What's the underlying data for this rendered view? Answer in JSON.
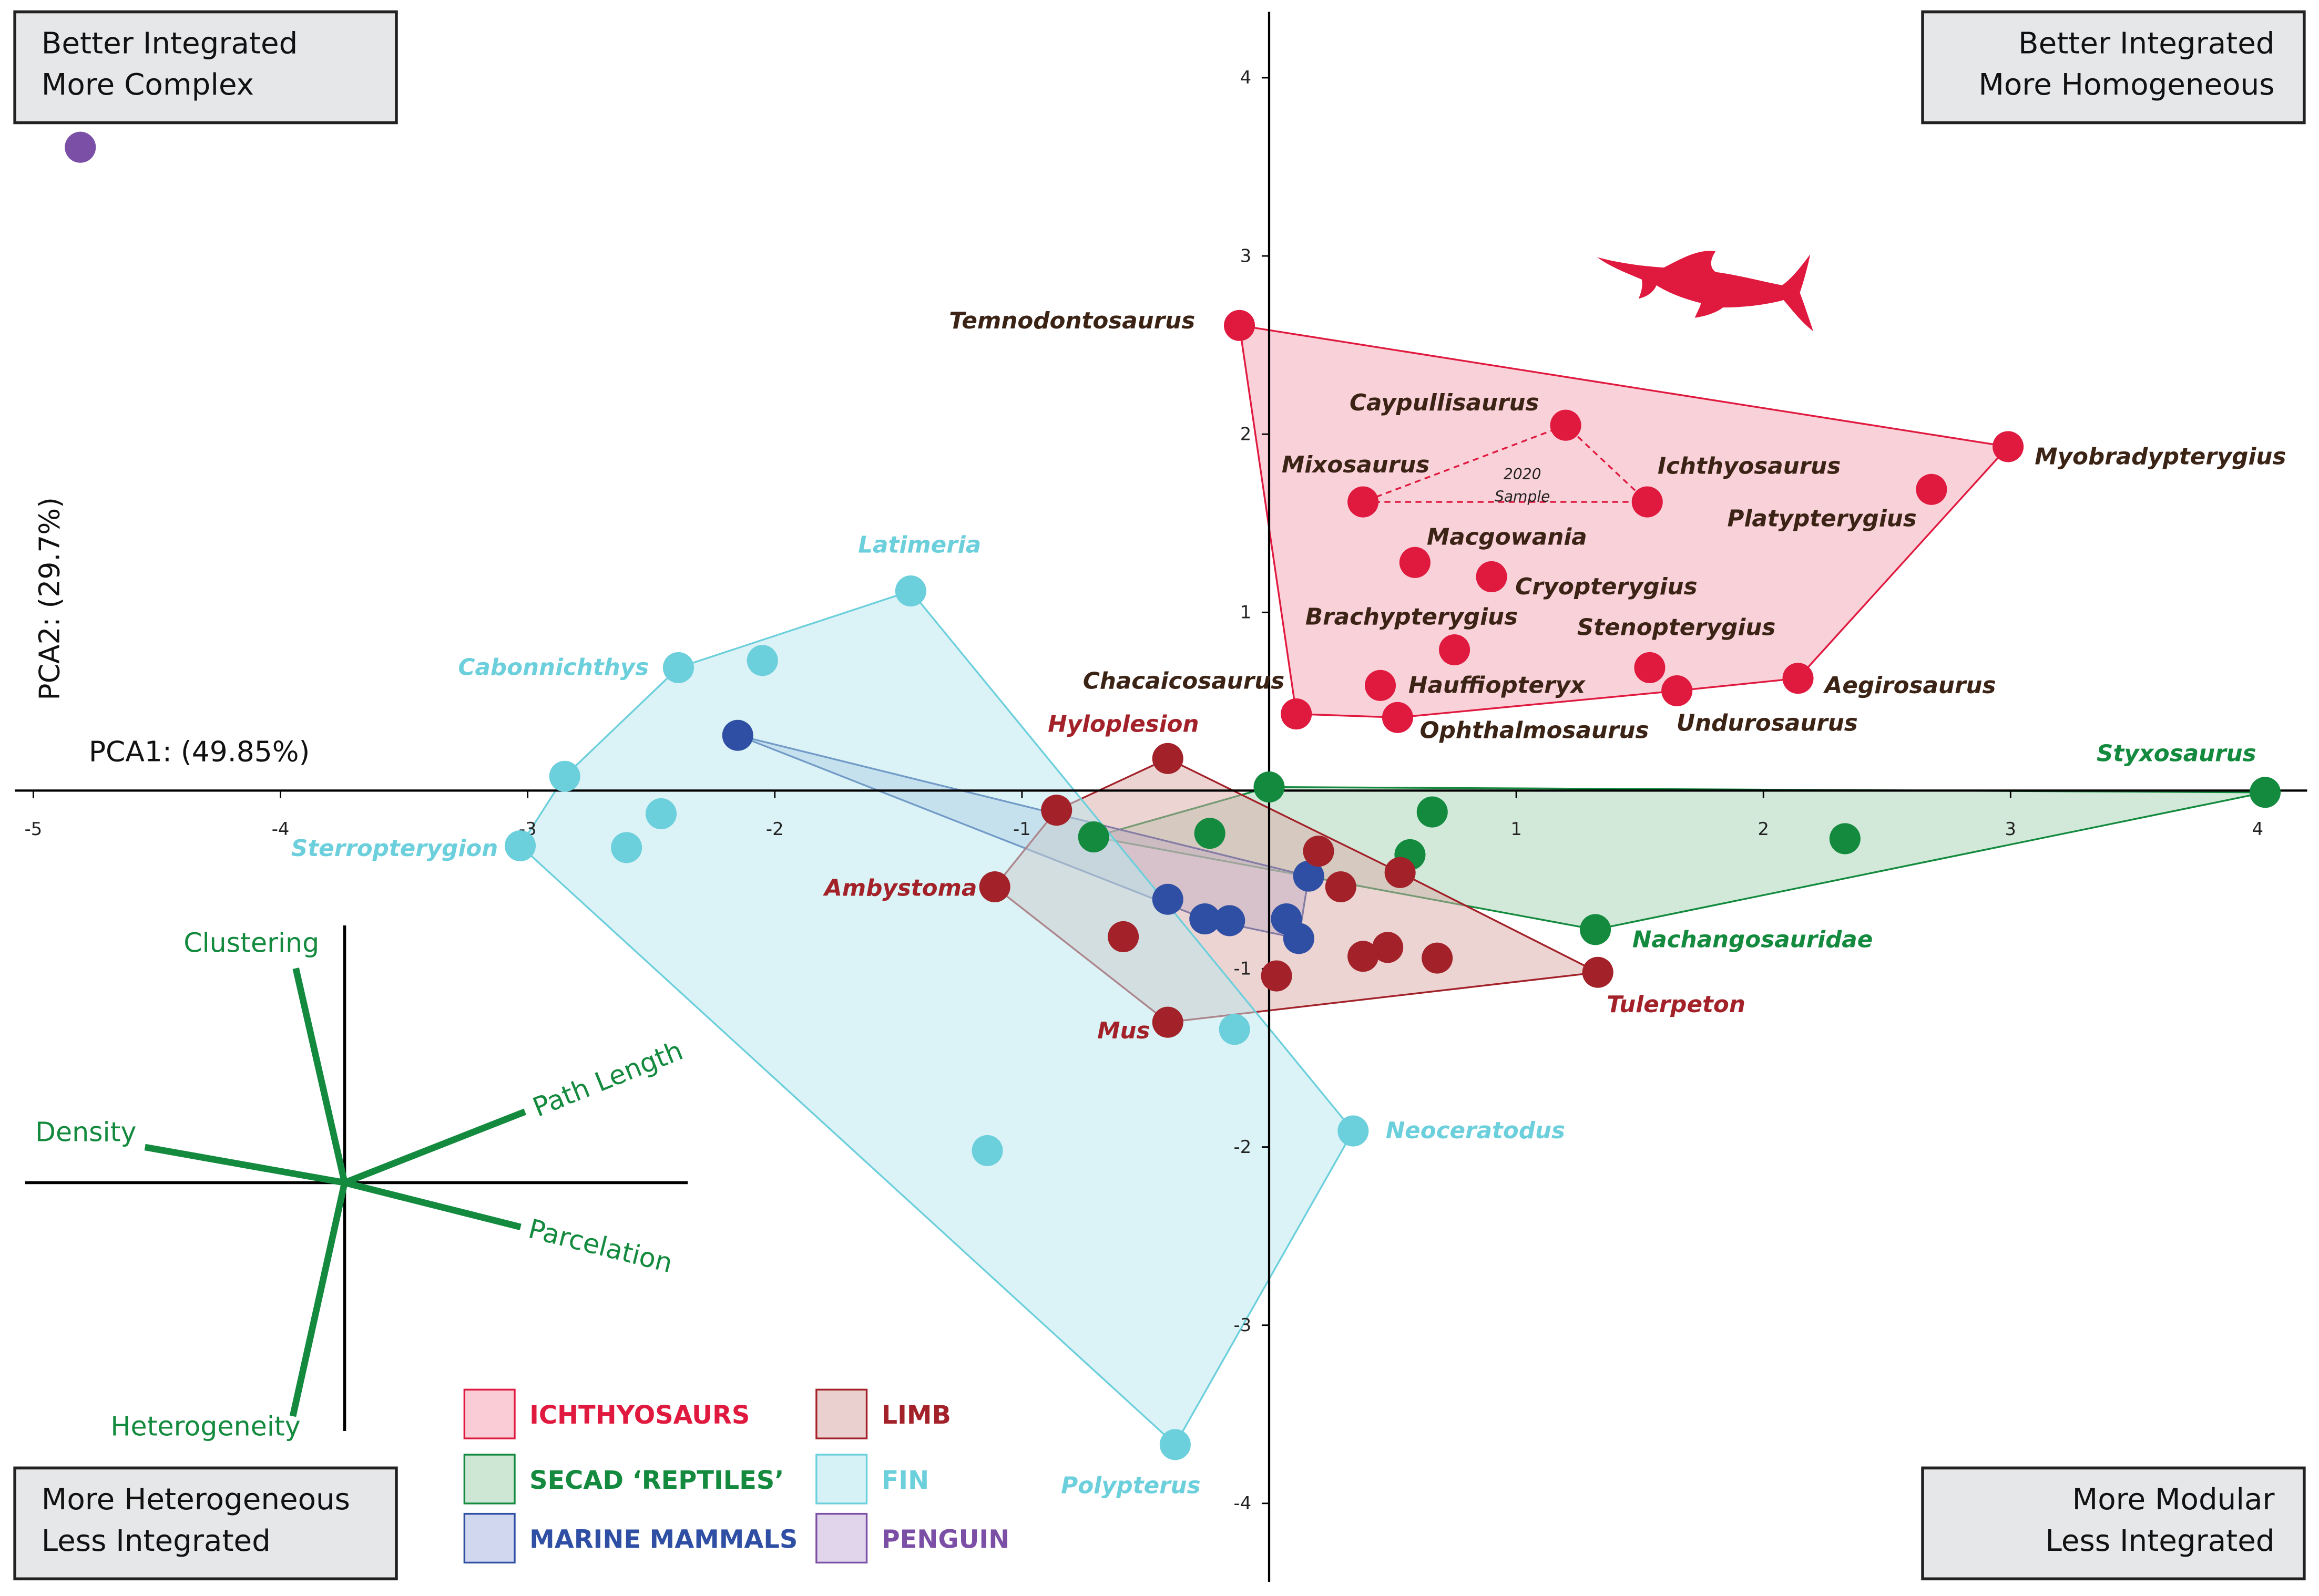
{
  "chart_data": [
    {
      "type": "scatter",
      "x_label": "PCA1: (49.85%)",
      "y_label": "PCA2: (29.7%)",
      "xlim": [
        -5.075,
        4.2
      ],
      "ylim": [
        -4.44,
        4.37
      ],
      "xticks": [
        -5,
        -4,
        -3,
        -2,
        -1,
        1,
        2,
        3,
        4
      ],
      "yticks": [
        4,
        3,
        2,
        1,
        -1,
        -2,
        -3,
        -4
      ],
      "hulls": true,
      "quadrant_labels": [
        {
          "lines": [
            "Better Integrated",
            "More Complex"
          ]
        },
        {
          "lines": [
            "Better Integrated",
            "More Homogeneous"
          ]
        },
        {
          "lines": [
            "More Heterogeneous",
            "Less Integrated"
          ]
        },
        {
          "lines": [
            "More Modular",
            "Less Integrated"
          ]
        }
      ],
      "annotation": {
        "lines": [
          "2020",
          "Sample"
        ]
      },
      "series": [
        {
          "name": "ICHTHYOSAURS",
          "color": "#e0193f",
          "fill": "#f4a3b4",
          "label_color": "#3b2416",
          "x": [
            -0.12,
            1.2,
            0.38,
            1.53,
            2.99,
            2.68,
            0.59,
            0.9,
            0.75,
            1.54,
            0.45,
            2.14,
            1.65,
            0.52,
            0.11
          ],
          "y": [
            2.61,
            2.05,
            1.62,
            1.62,
            1.93,
            1.69,
            1.28,
            1.2,
            0.79,
            0.69,
            0.59,
            0.63,
            0.56,
            0.41,
            0.43
          ],
          "labels": [
            "Temnodontosaurus",
            "Caypullisaurus",
            "Mixosaurus",
            "Ichthyosaurus",
            "Myobradypterygius",
            "Platypterygius",
            "Macgowania",
            "Cryopterygius",
            "Brachypterygius",
            "Stenopterygius",
            "Hauffiopteryx",
            "Aegirosaurus",
            "Undurosaurus",
            "Ophthalmosaurus",
            "Chacaicosaurus"
          ]
        },
        {
          "name": "SECAD ‘REPTILES’",
          "color": "#138a3e",
          "fill": "#a6d3b3",
          "label_color": "#138a3e",
          "x": [
            4.03,
            0.0,
            0.66,
            -0.24,
            -0.71,
            0.57,
            2.33,
            1.32
          ],
          "y": [
            -0.01,
            0.02,
            -0.12,
            -0.24,
            -0.26,
            -0.36,
            -0.27,
            -0.78
          ],
          "labels": [
            "Styxosaurus",
            null,
            null,
            null,
            null,
            null,
            null,
            "Nachangosauridae"
          ]
        },
        {
          "name": "MARINE MAMMALS",
          "color": "#2e4fa3",
          "fill": "#aab6e0",
          "label_color": "#2e4fa3",
          "x": [
            -2.15,
            -0.41,
            -0.26,
            -0.16,
            0.07,
            0.16,
            0.12
          ],
          "y": [
            0.31,
            -0.61,
            -0.72,
            -0.73,
            -0.72,
            -0.48,
            -0.83
          ],
          "labels": [
            null,
            null,
            null,
            null,
            null,
            null,
            null
          ]
        },
        {
          "name": "LIMB",
          "color": "#a3222a",
          "fill": "#d9aaa7",
          "label_color": "#a3222a",
          "x": [
            -0.41,
            -0.86,
            -1.11,
            -0.59,
            -0.41,
            0.03,
            0.2,
            0.29,
            0.53,
            0.38,
            0.48,
            0.68,
            1.33
          ],
          "y": [
            0.18,
            -0.11,
            -0.54,
            -0.82,
            -1.3,
            -1.04,
            -0.34,
            -0.54,
            -0.46,
            -0.93,
            -0.88,
            -0.94,
            -1.02
          ],
          "labels": [
            "Hyloplesion",
            null,
            "Ambystoma",
            null,
            "Mus",
            null,
            null,
            null,
            null,
            null,
            null,
            null,
            "Tulerpeton"
          ]
        },
        {
          "name": "FIN",
          "color": "#6ccfdc",
          "fill": "#b7e7ee",
          "label_color": "#6ccfdc",
          "x": [
            -1.45,
            -2.39,
            -2.05,
            -2.85,
            -3.03,
            -2.46,
            -2.6,
            -0.14,
            0.34,
            -1.14,
            -0.38
          ],
          "y": [
            1.12,
            0.69,
            0.73,
            0.08,
            -0.31,
            -0.13,
            -0.32,
            -1.34,
            -1.91,
            -2.02,
            -3.67
          ],
          "labels": [
            "Latimeria",
            "Cabonnichthys",
            null,
            null,
            "Sterropterygion",
            null,
            null,
            null,
            "Neoceratodus",
            null,
            "Polypterus"
          ]
        },
        {
          "name": "PENGUIN",
          "color": "#7b4fa6",
          "fill": "#c9b3dd",
          "label_color": "#7b4fa6",
          "x": [
            -4.81
          ],
          "y": [
            3.61
          ],
          "labels": [
            null
          ]
        }
      ]
    },
    {
      "type": "biplot",
      "color": "#138a3e",
      "xlim": [
        -2.16,
        2.32
      ],
      "ylim": [
        -1.68,
        1.74
      ],
      "vectors": [
        {
          "name": "Clustering",
          "x": -0.33,
          "y": 1.45
        },
        {
          "name": "Path Length",
          "x": 1.22,
          "y": 0.48
        },
        {
          "name": "Density",
          "x": -1.35,
          "y": 0.24
        },
        {
          "name": "Parcelation",
          "x": 1.19,
          "y": -0.3
        },
        {
          "name": "Heterogeneity",
          "x": -0.35,
          "y": -1.58
        }
      ]
    }
  ]
}
